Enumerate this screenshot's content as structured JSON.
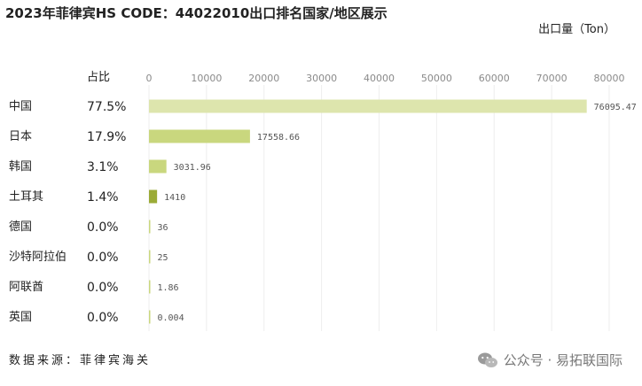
{
  "header": {
    "title": "2023年菲律宾HS CODE：44022010出口排名国家/地区展示",
    "unit_label": "出口量（Ton）",
    "share_header": "占比"
  },
  "footer": {
    "source": "数据来源：菲律宾海关",
    "watermark": "公众号 · 易拓联国际"
  },
  "chart_data": {
    "type": "bar",
    "orientation": "horizontal",
    "title": "2023年菲律宾HS CODE：44022010出口排名国家/地区展示",
    "xlabel": "出口量（Ton）",
    "xlim": [
      0,
      80000
    ],
    "x_ticks": [
      0,
      10000,
      20000,
      30000,
      40000,
      50000,
      60000,
      70000,
      80000
    ],
    "x_tick_labels": [
      "0",
      "10000",
      "20000",
      "30000",
      "40000",
      "50000",
      "60000",
      "70000",
      "80000"
    ],
    "x_axis_position": "top",
    "grid": "vertical",
    "categories": [
      "中国",
      "日本",
      "韩国",
      "土耳其",
      "德国",
      "沙特阿拉伯",
      "阿联酋",
      "英国"
    ],
    "shares": [
      "77.5%",
      "17.9%",
      "3.1%",
      "1.4%",
      "0.0%",
      "0.0%",
      "0.0%",
      "0.0%"
    ],
    "values": [
      76095.47,
      17558.66,
      3031.96,
      1410,
      36,
      25,
      1.86,
      0.004
    ],
    "value_labels": [
      "76095.47",
      "17558.66",
      "3031.96",
      "1410",
      "36",
      "25",
      "1.86",
      "0.004"
    ],
    "colors": [
      "#dde5ad",
      "#c9d77e",
      "#c9d77e",
      "#9bab37",
      "#c9d77e",
      "#c9d77e",
      "#c9d77e",
      "#c9d77e"
    ]
  }
}
